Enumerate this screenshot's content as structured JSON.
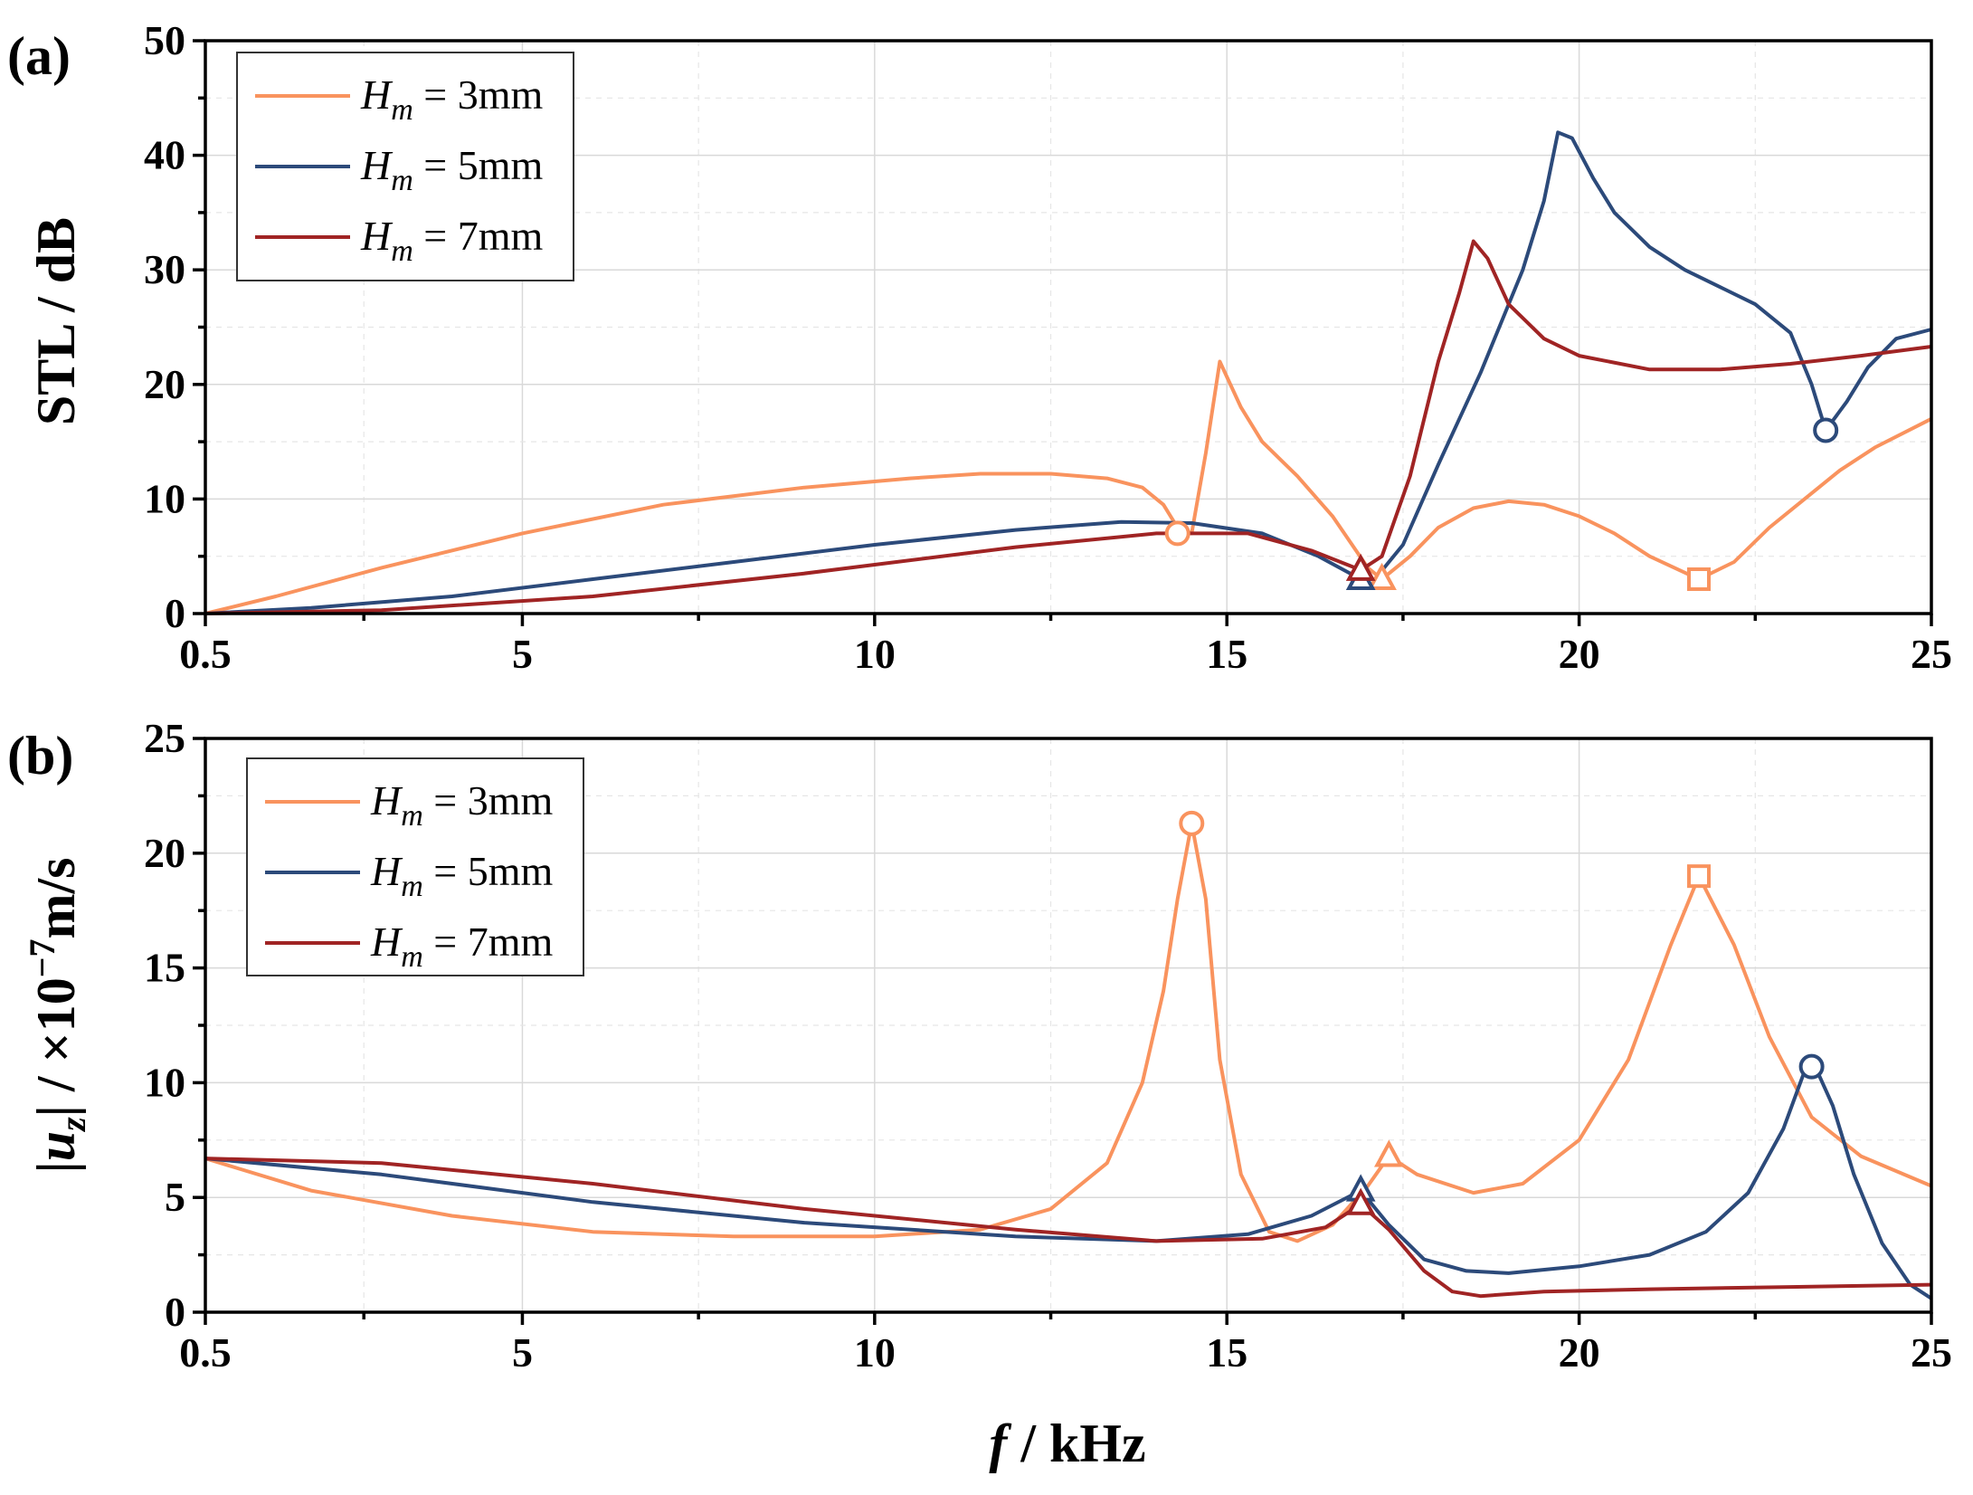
{
  "chart_data": [
    {
      "panel": "(a)",
      "type": "line",
      "xlabel": "",
      "ylabel": "STL / dB",
      "xlim": [
        0.5,
        25
      ],
      "ylim": [
        0,
        50
      ],
      "xticks": [
        0.5,
        5,
        10,
        15,
        20,
        25
      ],
      "yticks": [
        0,
        10,
        20,
        30,
        40,
        50
      ],
      "grid": true,
      "legend_position": "top-left",
      "series": [
        {
          "name": "H_m = 3mm",
          "label_parts": [
            "H",
            "m",
            " = 3mm"
          ],
          "color": "#f9935e",
          "x": [
            0.5,
            1.5,
            3,
            5,
            7,
            9,
            10.5,
            11.5,
            12.5,
            13.3,
            13.8,
            14.1,
            14.3,
            14.5,
            14.7,
            14.9,
            15.2,
            15.5,
            16,
            16.5,
            17.0,
            17.2,
            17.6,
            18,
            18.5,
            19,
            19.5,
            20,
            20.5,
            21,
            21.7,
            22.2,
            22.7,
            23.2,
            23.7,
            24.2,
            25
          ],
          "y": [
            0,
            1.5,
            4,
            7,
            9.5,
            11,
            11.8,
            12.2,
            12.2,
            11.8,
            11,
            9.5,
            7.5,
            7,
            14,
            22,
            18,
            15,
            12,
            8.5,
            4,
            3,
            5,
            7.5,
            9.2,
            9.8,
            9.5,
            8.5,
            7,
            5,
            3,
            4.5,
            7.5,
            10,
            12.5,
            14.5,
            17
          ]
        },
        {
          "name": "H_m = 5mm",
          "label_parts": [
            "H",
            "m",
            " = 5mm"
          ],
          "color": "#2c4a7a",
          "x": [
            0.5,
            2,
            4,
            6,
            8,
            10,
            12,
            13.5,
            14.5,
            15.5,
            16.3,
            16.9,
            17.1,
            17.5,
            18,
            18.6,
            19.2,
            19.5,
            19.7,
            19.9,
            20.2,
            20.5,
            21,
            21.5,
            22,
            22.5,
            23,
            23.3,
            23.5,
            23.8,
            24.1,
            24.5,
            25
          ],
          "y": [
            0,
            0.5,
            1.5,
            3,
            4.5,
            6,
            7.3,
            8,
            7.9,
            7,
            5,
            3,
            3,
            6,
            13,
            21,
            30,
            36,
            42,
            41.5,
            38,
            35,
            32,
            30,
            28.5,
            27,
            24.5,
            20,
            16,
            18.5,
            21.5,
            24,
            24.8
          ]
        },
        {
          "name": "H_m = 7mm",
          "label_parts": [
            "H",
            "m",
            " = 7mm"
          ],
          "color": "#a02424",
          "x": [
            0.5,
            3,
            6,
            9,
            12,
            14,
            15.3,
            16.2,
            16.9,
            17.2,
            17.6,
            18,
            18.3,
            18.5,
            18.7,
            19,
            19.5,
            20,
            21,
            22,
            23,
            24,
            25
          ],
          "y": [
            0,
            0.3,
            1.5,
            3.5,
            5.8,
            7,
            7,
            5.5,
            3.8,
            5,
            12,
            22,
            28,
            32.5,
            31,
            27,
            24,
            22.5,
            21.3,
            21.3,
            21.8,
            22.5,
            23.3
          ]
        }
      ],
      "markers": [
        {
          "series": "H_m = 3mm",
          "shape": "circle",
          "x": 14.3,
          "y": 7
        },
        {
          "series": "H_m = 3mm",
          "shape": "triangle",
          "x": 17.2,
          "y": 3
        },
        {
          "series": "H_m = 3mm",
          "shape": "square",
          "x": 21.7,
          "y": 3
        },
        {
          "series": "H_m = 5mm",
          "shape": "circle",
          "x": 23.5,
          "y": 16
        },
        {
          "series": "H_m = 5mm",
          "shape": "triangle",
          "x": 16.9,
          "y": 3
        },
        {
          "series": "H_m = 7mm",
          "shape": "triangle",
          "x": 16.9,
          "y": 3.8
        }
      ]
    },
    {
      "panel": "(b)",
      "type": "line",
      "xlabel_parts": [
        "f",
        " / kHz"
      ],
      "ylabel_parts": [
        "|",
        "u",
        "z",
        "| / ×10",
        "−7",
        "m/s"
      ],
      "xlim": [
        0.5,
        25
      ],
      "ylim": [
        0,
        25
      ],
      "xticks": [
        0.5,
        5,
        10,
        15,
        20,
        25
      ],
      "yticks": [
        0,
        5,
        10,
        15,
        20,
        25
      ],
      "grid": true,
      "legend_position": "top-left",
      "series": [
        {
          "name": "H_m = 3mm",
          "label_parts": [
            "H",
            "m",
            " = 3mm"
          ],
          "color": "#f9935e",
          "x": [
            0.5,
            2,
            4,
            6,
            8,
            10,
            11.5,
            12.5,
            13.3,
            13.8,
            14.1,
            14.3,
            14.5,
            14.7,
            14.9,
            15.2,
            15.6,
            16,
            16.5,
            17.0,
            17.3,
            17.7,
            18.5,
            19.2,
            20,
            20.7,
            21.3,
            21.7,
            22.2,
            22.7,
            23.3,
            24,
            25
          ],
          "y": [
            6.7,
            5.3,
            4.2,
            3.5,
            3.3,
            3.3,
            3.6,
            4.5,
            6.5,
            10,
            14,
            18,
            21.3,
            18,
            11,
            6,
            3.5,
            3.1,
            3.8,
            5.5,
            6.8,
            6,
            5.2,
            5.6,
            7.5,
            11,
            16,
            19,
            16,
            12,
            8.5,
            6.8,
            5.5
          ]
        },
        {
          "name": "H_m = 5mm",
          "label_parts": [
            "H",
            "m",
            " = 5mm"
          ],
          "color": "#2c4a7a",
          "x": [
            0.5,
            3,
            6,
            9,
            12,
            14,
            15.3,
            16.2,
            16.9,
            17.3,
            17.8,
            18.4,
            19,
            20,
            21,
            21.8,
            22.4,
            22.9,
            23.2,
            23.35,
            23.6,
            23.9,
            24.3,
            24.7,
            25
          ],
          "y": [
            6.7,
            6,
            4.8,
            3.9,
            3.3,
            3.1,
            3.4,
            4.2,
            5.3,
            3.8,
            2.3,
            1.8,
            1.7,
            2.0,
            2.5,
            3.5,
            5.2,
            8,
            10.5,
            10.7,
            9,
            6,
            3,
            1.2,
            0.6
          ]
        },
        {
          "name": "H_m = 7mm",
          "label_parts": [
            "H",
            "m",
            " = 7mm"
          ],
          "color": "#a02424",
          "x": [
            0.5,
            3,
            6,
            9,
            12,
            14,
            15.5,
            16.4,
            16.9,
            17.3,
            17.8,
            18.2,
            18.6,
            19.5,
            21,
            23,
            25
          ],
          "y": [
            6.7,
            6.5,
            5.6,
            4.5,
            3.6,
            3.1,
            3.2,
            3.7,
            4.7,
            3.6,
            1.8,
            0.9,
            0.7,
            0.9,
            1.0,
            1.1,
            1.2
          ]
        }
      ],
      "markers": [
        {
          "series": "H_m = 3mm",
          "shape": "circle",
          "x": 14.5,
          "y": 21.3
        },
        {
          "series": "H_m = 3mm",
          "shape": "triangle",
          "x": 17.3,
          "y": 6.8
        },
        {
          "series": "H_m = 3mm",
          "shape": "square",
          "x": 21.7,
          "y": 19
        },
        {
          "series": "H_m = 5mm",
          "shape": "circle",
          "x": 23.3,
          "y": 10.7
        },
        {
          "series": "H_m = 5mm",
          "shape": "triangle",
          "x": 16.9,
          "y": 5.3
        },
        {
          "series": "H_m = 7mm",
          "shape": "triangle",
          "x": 16.9,
          "y": 4.7
        }
      ]
    }
  ]
}
